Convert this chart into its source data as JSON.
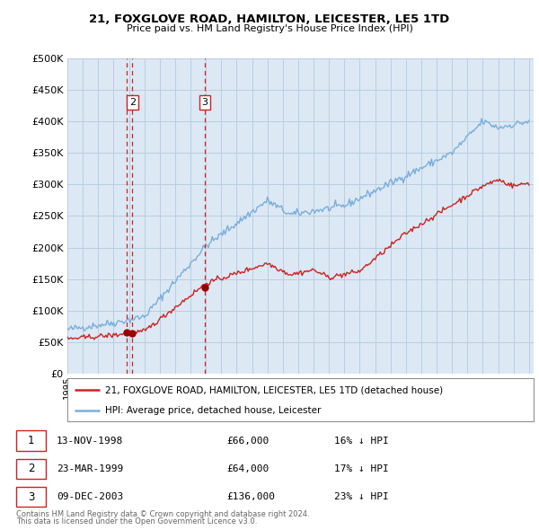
{
  "title": "21, FOXGLOVE ROAD, HAMILTON, LEICESTER, LE5 1TD",
  "subtitle": "Price paid vs. HM Land Registry's House Price Index (HPI)",
  "ylim": [
    0,
    500000
  ],
  "yticks": [
    0,
    50000,
    100000,
    150000,
    200000,
    250000,
    300000,
    350000,
    400000,
    450000,
    500000
  ],
  "xlim_start": 1995.0,
  "xlim_end": 2025.3,
  "red_line_label": "21, FOXGLOVE ROAD, HAMILTON, LEICESTER, LE5 1TD (detached house)",
  "blue_line_label": "HPI: Average price, detached house, Leicester",
  "sales": [
    {
      "num": 1,
      "date": "13-NOV-1998",
      "price": 66000,
      "pct": "16%",
      "x": 1998.87
    },
    {
      "num": 2,
      "date": "23-MAR-1999",
      "price": 64000,
      "pct": "17%",
      "x": 1999.22
    },
    {
      "num": 3,
      "date": "09-DEC-2003",
      "price": 136000,
      "pct": "23%",
      "x": 2003.93
    }
  ],
  "footer1": "Contains HM Land Registry data © Crown copyright and database right 2024.",
  "footer2": "This data is licensed under the Open Government Licence v3.0.",
  "hpi_color": "#7aadda",
  "price_color": "#cc2222",
  "chart_bg_color": "#dce9f5",
  "background_color": "#ffffff",
  "grid_color": "#b8cfe0",
  "sale_marker_color": "#990000",
  "vline_color": "#cc2222",
  "box_color": "#cc2222",
  "legend_border_color": "#888888"
}
